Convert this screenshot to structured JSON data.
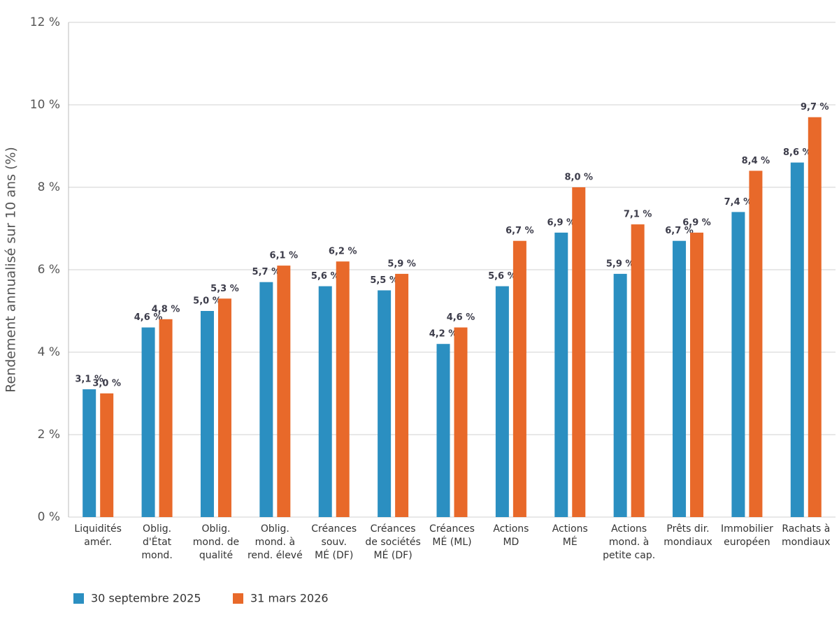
{
  "chart_data": {
    "type": "bar",
    "y_label": "Rendement annualisé sur 10 ans (%)",
    "categories": [
      [
        "Liquidités",
        "amér."
      ],
      [
        "Oblig.",
        "d'État",
        "mond."
      ],
      [
        "Oblig.",
        "mond. de",
        "qualité"
      ],
      [
        "Oblig.",
        "mond. à",
        "rend. élevé"
      ],
      [
        "Créances",
        "souv.",
        "MÉ (DF)"
      ],
      [
        "Créances",
        "de sociétés",
        "MÉ (DF)"
      ],
      [
        "Créances",
        "MÉ (ML)"
      ],
      [
        "Actions",
        "MD"
      ],
      [
        "Actions",
        "MÉ"
      ],
      [
        "Actions",
        "mond. à",
        "petite cap."
      ],
      [
        "Prêts dir.",
        "mondiaux"
      ],
      [
        "Immobilier",
        "européen"
      ],
      [
        "Rachats à",
        "mondiaux"
      ]
    ],
    "series": [
      {
        "name": "30 septembre 2025",
        "color": "#2b8fc1",
        "values": [
          3.1,
          4.6,
          5.0,
          5.7,
          5.6,
          5.5,
          4.2,
          5.6,
          6.9,
          5.9,
          6.7,
          7.4,
          8.6
        ],
        "value_labels": [
          "3,1 %",
          "4,6 %",
          "5,0 %",
          "5,7 %",
          "5,6 %",
          "5,5 %",
          "4,2 %",
          "5,6 %",
          "6,9 %",
          "5,9 %",
          "6,7 %",
          "7,4 %",
          "8,6 %"
        ]
      },
      {
        "name": "31 mars 2026",
        "color": "#e8692a",
        "values": [
          3.0,
          4.8,
          5.3,
          6.1,
          6.2,
          5.9,
          4.6,
          6.7,
          8.0,
          7.1,
          6.9,
          8.4,
          9.7
        ],
        "value_labels": [
          "3,0 %",
          "4,8 %",
          "5,3 %",
          "6,1 %",
          "6,2 %",
          "5,9 %",
          "4,6 %",
          "6,7 %",
          "8,0 %",
          "7,1 %",
          "6,9 %",
          "8,4 %",
          "9,7 %"
        ]
      }
    ],
    "ylim": [
      0,
      12
    ],
    "yticks": [
      {
        "value": 0,
        "label": "0 %"
      },
      {
        "value": 2,
        "label": "2 %"
      },
      {
        "value": 4,
        "label": "4 %"
      },
      {
        "value": 6,
        "label": "6 %"
      },
      {
        "value": 8,
        "label": "8 %"
      },
      {
        "value": 10,
        "label": "10 %"
      },
      {
        "value": 12,
        "label": "12 %"
      }
    ],
    "grid": true
  }
}
